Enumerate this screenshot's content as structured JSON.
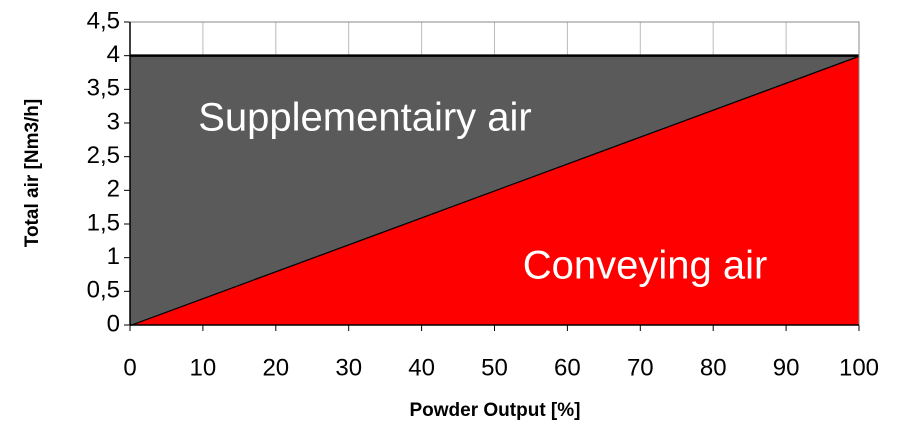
{
  "chart_data": {
    "type": "stacked_area",
    "x_label": "Powder Output [%]",
    "y_label": "Total air [Nm3/h]",
    "x": [
      0,
      100
    ],
    "series": [
      {
        "name": "Conveying air",
        "color": "#ff0000",
        "values": [
          0,
          4
        ]
      },
      {
        "name": "Supplementairy air",
        "color": "#5a5a5a",
        "values": [
          4,
          0
        ]
      }
    ],
    "xlim": [
      0,
      100
    ],
    "xticks": [
      0,
      10,
      20,
      30,
      40,
      50,
      60,
      70,
      80,
      90,
      100
    ],
    "ylim": [
      0,
      4.5
    ],
    "yticks": [
      0,
      {
        "value": 0.5,
        "label": "0,5"
      },
      1,
      {
        "value": 1.5,
        "label": "1,5"
      },
      2,
      {
        "value": 2.5,
        "label": "2,5"
      },
      3,
      {
        "value": 3.5,
        "label": "3,5"
      },
      4,
      {
        "value": 4.5,
        "label": "4,5"
      }
    ],
    "grid": true
  }
}
